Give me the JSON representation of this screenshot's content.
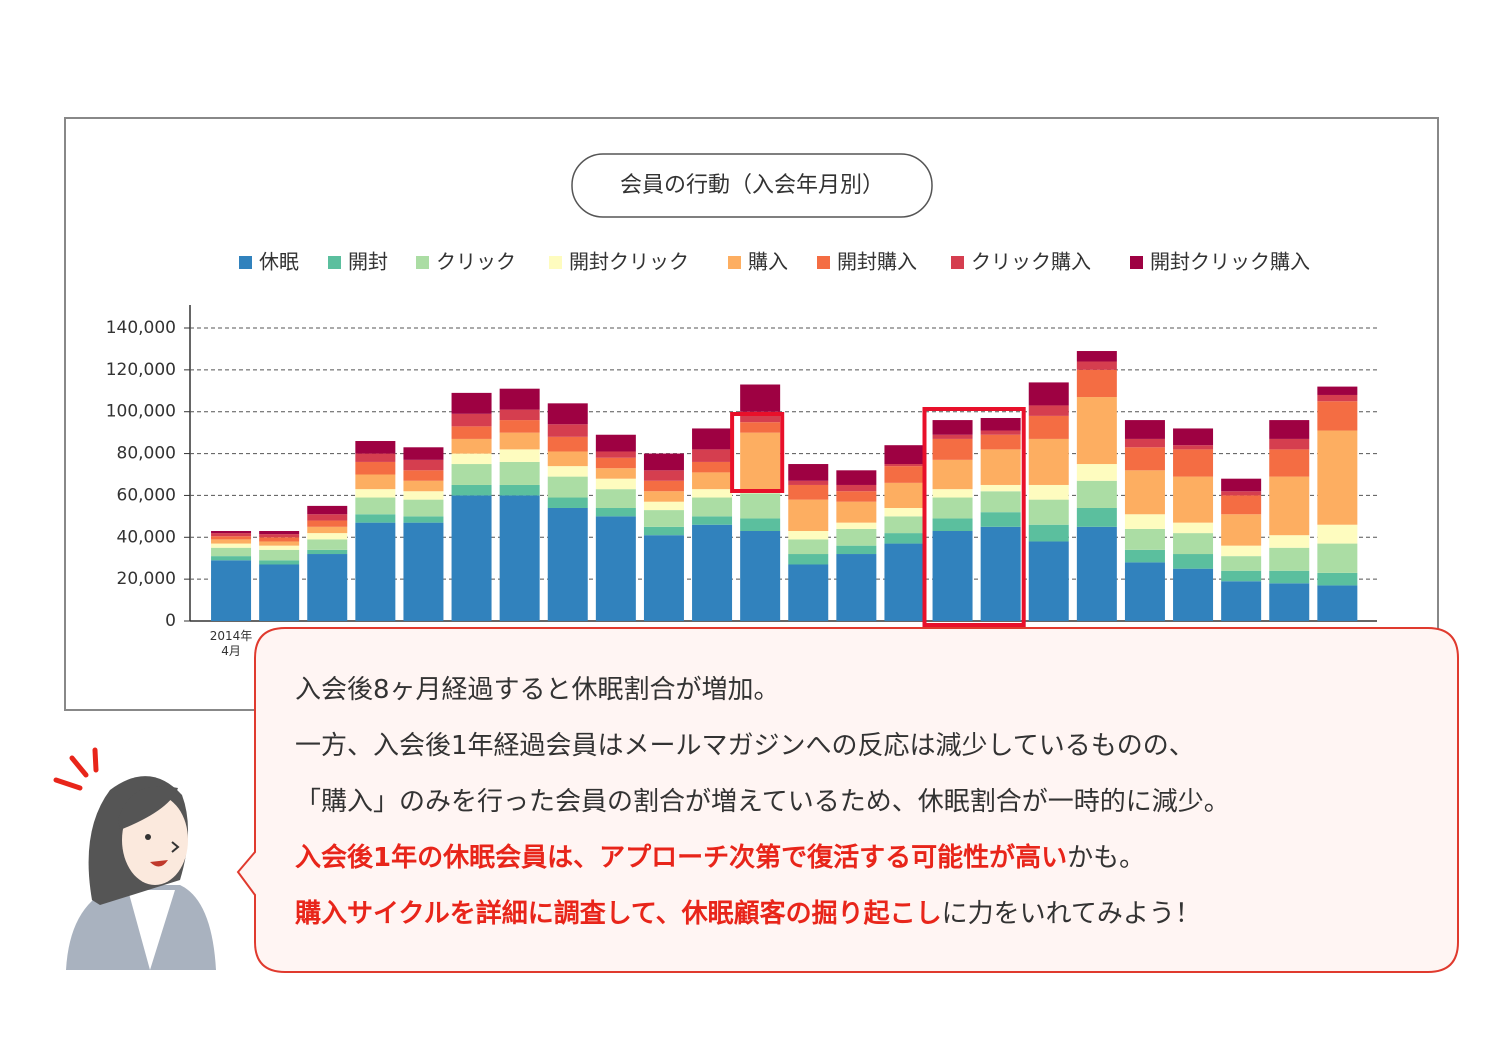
{
  "chart_data": {
    "type": "stacked_bar",
    "title": "会員の行動（入会年月別）",
    "categories": [
      "2014年\n4月",
      null,
      null,
      null,
      null,
      null,
      null,
      null,
      null,
      null,
      null,
      null,
      null,
      null,
      null,
      null,
      null,
      null,
      null,
      null,
      null,
      null,
      null,
      null
    ],
    "series": [
      {
        "name": "休眠",
        "color": "#3182bd",
        "values": [
          29000,
          27000,
          32000,
          47000,
          47000,
          60000,
          60000,
          54000,
          50000,
          41000,
          46000,
          43000,
          27000,
          32000,
          37000,
          43000,
          45000,
          38000,
          45000,
          28000,
          25000,
          19000,
          18000,
          17000
        ]
      },
      {
        "name": "開封",
        "color": "#5bbf9e",
        "values": [
          2000,
          2000,
          2000,
          4000,
          3000,
          5000,
          5000,
          5000,
          4000,
          4000,
          4000,
          6000,
          5000,
          4000,
          5000,
          6000,
          7000,
          8000,
          9000,
          6000,
          7000,
          5000,
          6000,
          6000
        ]
      },
      {
        "name": "クリック",
        "color": "#abdda4",
        "values": [
          4000,
          5000,
          5000,
          8000,
          8000,
          10000,
          11000,
          10000,
          9000,
          8000,
          9000,
          12000,
          7000,
          8000,
          8000,
          10000,
          10000,
          12000,
          13000,
          10000,
          10000,
          7000,
          11000,
          14000
        ]
      },
      {
        "name": "開封クリック",
        "color": "#fefcbf",
        "values": [
          2000,
          2000,
          3000,
          4000,
          4000,
          5000,
          6000,
          5000,
          5000,
          4000,
          4000,
          1000,
          4000,
          3000,
          4000,
          4000,
          3000,
          7000,
          8000,
          7000,
          5000,
          5000,
          6000,
          9000
        ]
      },
      {
        "name": "購入",
        "color": "#fdae61",
        "values": [
          2000,
          2000,
          3000,
          7000,
          5000,
          7000,
          8000,
          7000,
          5000,
          5000,
          8000,
          28000,
          15000,
          10000,
          12000,
          14000,
          17000,
          22000,
          32000,
          21000,
          22000,
          15000,
          28000,
          45000
        ]
      },
      {
        "name": "開封購入",
        "color": "#f46d43",
        "values": [
          1500,
          2000,
          3000,
          6000,
          5000,
          6000,
          6000,
          7000,
          5000,
          5000,
          5000,
          5000,
          7000,
          5000,
          8000,
          10000,
          7000,
          11000,
          13000,
          11000,
          13000,
          9000,
          13000,
          14000
        ]
      },
      {
        "name": "クリック購入",
        "color": "#d53e4f",
        "values": [
          1500,
          1500,
          3000,
          4000,
          5000,
          6000,
          5000,
          6000,
          3000,
          5000,
          6000,
          5000,
          2000,
          3000,
          1000,
          2000,
          2000,
          5000,
          4000,
          4000,
          2000,
          2000,
          5000,
          3000
        ]
      },
      {
        "name": "開封クリック購入",
        "color": "#9e0142",
        "values": [
          1000,
          1500,
          4000,
          6000,
          6000,
          10000,
          10000,
          10000,
          8000,
          8000,
          10000,
          13000,
          8000,
          7000,
          9000,
          7000,
          6000,
          11000,
          5000,
          9000,
          8000,
          6000,
          9000,
          4000
        ]
      }
    ],
    "ylim": [
      0,
      140000
    ],
    "yticks": [
      0,
      {
        "value": 20000,
        "label": "20,000"
      },
      {
        "value": 40000,
        "label": "40,000"
      },
      {
        "value": 60000,
        "label": "60,000"
      },
      {
        "value": 80000,
        "label": "80,000"
      },
      {
        "value": 100000,
        "label": "100,000"
      },
      {
        "value": 120000,
        "label": "120,000"
      },
      {
        "value": 140000,
        "label": "140,000"
      }
    ],
    "grid": true,
    "legend": "top"
  },
  "callout": {
    "lines": [
      [
        {
          "text": "入会後8ヶ月経過すると休眠割合が増加。",
          "highlight": false
        }
      ],
      [
        {
          "text": "一方、入会後1年経過会員はメールマガジンへの反応は減少しているものの、",
          "highlight": false
        }
      ],
      [
        {
          "text": "「購入」のみを行った会員の割合が増えているため、休眠割合が一時的に減少。",
          "highlight": false
        }
      ],
      [
        {
          "text": "入会後1年の休眠会員は、アプローチ次第で復活する可能性が高い",
          "highlight": true
        },
        {
          "text": "かも。",
          "highlight": false
        }
      ],
      [
        {
          "text": "購入サイクルを詳細に調査して、休眠顧客の掘り起こし",
          "highlight": true
        },
        {
          "text": "に力をいれてみよう！",
          "highlight": false
        }
      ]
    ]
  }
}
